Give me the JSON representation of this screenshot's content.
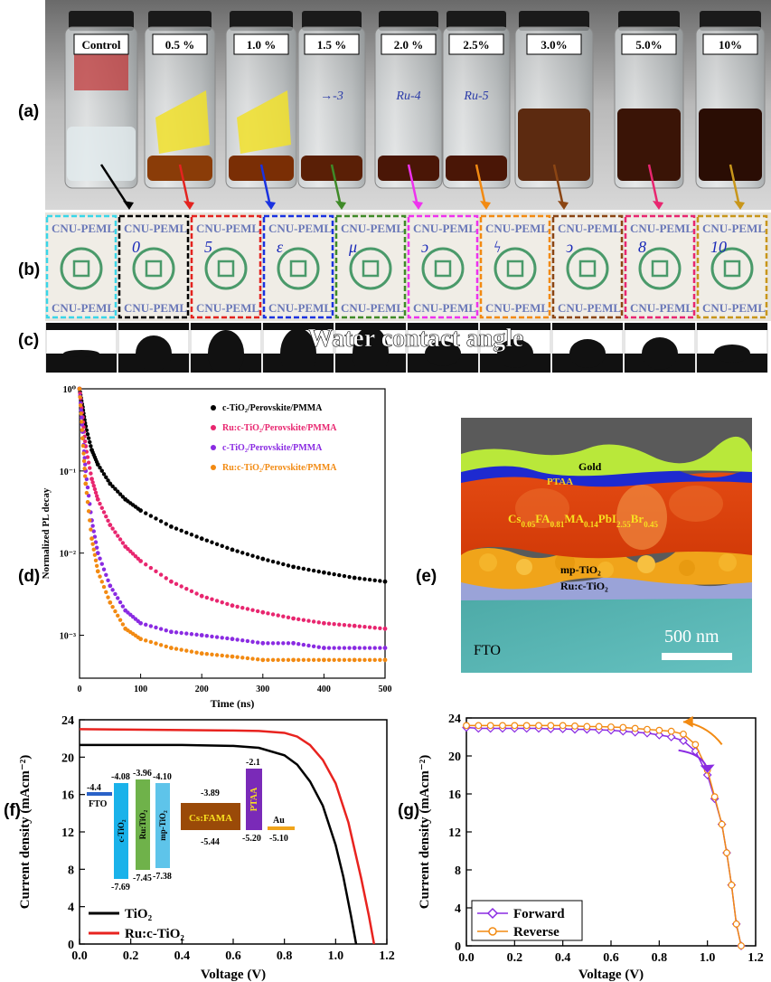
{
  "panel_labels": {
    "a": "(a)",
    "b": "(b)",
    "c": "(c)",
    "d": "(d)",
    "e": "(e)",
    "f": "(f)",
    "g": "(g)"
  },
  "panel_a": {
    "vial_labels": [
      "Control",
      "0.5 %",
      "1.0 %",
      "1.5 %",
      "2.0 %",
      "2.5%",
      "3.0%",
      "5.0%",
      "10%"
    ],
    "vial_handwriting": [
      "",
      "",
      "",
      "→-3",
      "Ru-4",
      "Ru-5",
      "",
      "",
      ""
    ],
    "solution_colors": [
      "#e8eef0",
      "#8a3c08",
      "#7a2e05",
      "#5a1f06",
      "#4a1606",
      "#4a1606",
      "#5c2a10",
      "#3a1406",
      "#2a0d04"
    ],
    "arrow_colors": [
      "#000000",
      "#e3231f",
      "#1a32e0",
      "#3f8a28",
      "#ee32ee",
      "#f28a12",
      "#8b4513",
      "#e8266f",
      "#c8961a"
    ]
  },
  "panel_b": {
    "substrate_text": "CNU-PEML",
    "handwritten_marks": [
      "",
      "0",
      "5",
      "ε",
      "μ",
      "ɔ",
      "ϟ",
      "ↄ",
      "8",
      "10"
    ],
    "border_colors": [
      "#3ad6e8",
      "#000000",
      "#e3231f",
      "#1a32e0",
      "#3f8a28",
      "#ee32ee",
      "#f28a12",
      "#8b4513",
      "#e8266f",
      "#c8961a"
    ]
  },
  "panel_c": {
    "title": "Water contact  angle"
  },
  "panel_d": {
    "ylabel": "Normalized PL decay",
    "xlabel": "Time (ns)",
    "yticks": [
      "10⁰",
      "10⁻¹",
      "10⁻²",
      "10⁻³"
    ],
    "chart_data": {
      "type": "scatter",
      "xlabel": "Time (ns)",
      "ylabel": "Normalized PL decay",
      "xlim": [
        0,
        500
      ],
      "ylim": [
        0.0003,
        1
      ],
      "yscale": "log",
      "xticks": [
        0,
        100,
        200,
        300,
        400,
        500
      ],
      "legend_position": "top-right",
      "series": [
        {
          "name": "c-TiO₂/Perovskite/PMMA",
          "color": "#000000",
          "x": [
            0,
            5,
            10,
            20,
            30,
            50,
            75,
            100,
            150,
            200,
            250,
            300,
            350,
            400,
            450,
            500
          ],
          "y": [
            1.0,
            0.6,
            0.35,
            0.18,
            0.12,
            0.07,
            0.045,
            0.033,
            0.021,
            0.015,
            0.011,
            0.0085,
            0.0068,
            0.0058,
            0.005,
            0.0045
          ]
        },
        {
          "name": "Ru:c-TiO₂/Perovskite/PMMA",
          "color": "#e8266f",
          "x": [
            0,
            5,
            10,
            20,
            30,
            50,
            75,
            100,
            150,
            200,
            250,
            300,
            350,
            400,
            450,
            500
          ],
          "y": [
            1.0,
            0.45,
            0.2,
            0.08,
            0.045,
            0.022,
            0.012,
            0.008,
            0.0045,
            0.003,
            0.0023,
            0.0019,
            0.0016,
            0.0014,
            0.0013,
            0.0012
          ]
        },
        {
          "name": "c-TiO₂/Perovskite/PMMA",
          "color": "#8a2be2",
          "x": [
            0,
            5,
            10,
            20,
            30,
            50,
            75,
            100,
            150,
            200,
            250,
            300,
            350,
            400,
            450,
            500
          ],
          "y": [
            1.0,
            0.3,
            0.1,
            0.025,
            0.01,
            0.004,
            0.002,
            0.0014,
            0.0011,
            0.001,
            0.0009,
            0.0008,
            0.0008,
            0.0007,
            0.0007,
            0.0007
          ]
        },
        {
          "name": "Ru:c-TiO₂/Perovskite/PMMA",
          "color": "#f28a12",
          "x": [
            0,
            5,
            10,
            20,
            30,
            50,
            75,
            100,
            150,
            200,
            250,
            300,
            350,
            400,
            450,
            500
          ],
          "y": [
            1.0,
            0.25,
            0.07,
            0.015,
            0.006,
            0.0025,
            0.0012,
            0.0009,
            0.0007,
            0.0006,
            0.00055,
            0.0005,
            0.0005,
            0.0005,
            0.0005,
            0.0005
          ]
        }
      ]
    }
  },
  "panel_e": {
    "layers": {
      "gold": "Gold",
      "ptaa": "PTAA",
      "mp": "mp-TiO₂",
      "ru": "Ru:c-TiO₂",
      "fto": "FTO"
    },
    "perovskite": {
      "p1": "Cs",
      "s1": "0.05",
      "p2": "FA",
      "s2": "0.81",
      "p3": "MA",
      "s3": "0.14",
      "p4": "PbI",
      "s4": "2.55",
      "p5": "Br",
      "s5": "0.45"
    },
    "scale_bar": "500 nm"
  },
  "panel_f": {
    "ylabel": "Current density (mAcm⁻²)",
    "xlabel": "Voltage (V)",
    "legend": [
      "TiO₂",
      "Ru:c-TiO₂"
    ],
    "energy_levels": {
      "fto": {
        "name": "FTO",
        "top": "-4.4"
      },
      "ctio2": {
        "name": "c-TiO₂",
        "top": "-4.08",
        "bottom": "-7.69"
      },
      "rutio2": {
        "name": "Ru:TiO₂",
        "top": "-3.96",
        "bottom": "-7.45"
      },
      "mptio2": {
        "name": "mp-TiO₂",
        "top": "-4.10",
        "bottom": "-7.38"
      },
      "csfama": {
        "name": "Cs:FAMA",
        "top": "-3.89",
        "bottom": "-5.44"
      },
      "ptaa": {
        "name": "PTAA",
        "top": "-2.1",
        "bottom": "-5.20"
      },
      "au": {
        "name": "Au",
        "bottom": "-5.10"
      }
    },
    "chart_data": {
      "type": "line",
      "xlabel": "Voltage (V)",
      "ylabel": "Current density (mAcm⁻²)",
      "xlim": [
        0,
        1.2
      ],
      "ylim": [
        0,
        24
      ],
      "xticks": [
        0.0,
        0.2,
        0.4,
        0.6,
        0.8,
        1.0,
        1.2
      ],
      "yticks": [
        0,
        4,
        8,
        12,
        16,
        20,
        24
      ],
      "legend_position": "bottom-left",
      "series": [
        {
          "name": "TiO₂",
          "color": "#000000",
          "x": [
            0,
            0.2,
            0.4,
            0.6,
            0.7,
            0.8,
            0.85,
            0.9,
            0.95,
            1.0,
            1.03,
            1.06,
            1.08
          ],
          "y": [
            21.3,
            21.3,
            21.3,
            21.2,
            21.0,
            20.2,
            19.2,
            17.4,
            14.8,
            10.6,
            7.2,
            3.0,
            0
          ]
        },
        {
          "name": "Ru:c-TiO₂",
          "color": "#e8231f",
          "x": [
            0,
            0.2,
            0.4,
            0.6,
            0.7,
            0.8,
            0.85,
            0.9,
            0.95,
            1.0,
            1.05,
            1.1,
            1.13,
            1.15
          ],
          "y": [
            23.0,
            22.95,
            22.9,
            22.85,
            22.8,
            22.6,
            22.2,
            21.3,
            19.7,
            17.2,
            13.0,
            7.0,
            3.0,
            0
          ]
        }
      ]
    }
  },
  "panel_g": {
    "ylabel": "Current density (mAcm⁻²)",
    "xlabel": "Voltage (V)",
    "chart_data": {
      "type": "line",
      "xlabel": "Voltage (V)",
      "ylabel": "Current density (mAcm⁻²)",
      "xlim": [
        0,
        1.2
      ],
      "ylim": [
        0,
        24
      ],
      "xticks": [
        0.0,
        0.2,
        0.4,
        0.6,
        0.8,
        1.0,
        1.2
      ],
      "yticks": [
        0,
        4,
        8,
        12,
        16,
        20,
        24
      ],
      "legend_position": "bottom-left",
      "series": [
        {
          "name": "Forward",
          "color": "#8a2be2",
          "marker": "diamond",
          "x": [
            0,
            0.05,
            0.1,
            0.15,
            0.2,
            0.25,
            0.3,
            0.35,
            0.4,
            0.45,
            0.5,
            0.55,
            0.6,
            0.65,
            0.7,
            0.75,
            0.8,
            0.85,
            0.9,
            0.95,
            1.0,
            1.03,
            1.06,
            1.08,
            1.1,
            1.12,
            1.14
          ],
          "y": [
            23.0,
            22.9,
            22.9,
            22.9,
            22.9,
            22.9,
            22.9,
            22.85,
            22.85,
            22.8,
            22.8,
            22.75,
            22.7,
            22.6,
            22.5,
            22.4,
            22.2,
            22.0,
            21.6,
            20.5,
            18.0,
            15.5,
            12.8,
            9.8,
            6.4,
            2.3,
            0
          ]
        },
        {
          "name": "Reverse",
          "color": "#f28a12",
          "marker": "circle",
          "x": [
            0,
            0.05,
            0.1,
            0.15,
            0.2,
            0.25,
            0.3,
            0.35,
            0.4,
            0.45,
            0.5,
            0.55,
            0.6,
            0.65,
            0.7,
            0.75,
            0.8,
            0.85,
            0.9,
            0.95,
            1.0,
            1.03,
            1.06,
            1.08,
            1.1,
            1.12,
            1.14
          ],
          "y": [
            23.2,
            23.2,
            23.2,
            23.2,
            23.2,
            23.2,
            23.2,
            23.2,
            23.2,
            23.15,
            23.1,
            23.1,
            23.05,
            23.0,
            22.9,
            22.8,
            22.7,
            22.6,
            22.3,
            21.2,
            18.5,
            15.7,
            12.8,
            9.8,
            6.4,
            2.3,
            0
          ]
        }
      ]
    }
  }
}
